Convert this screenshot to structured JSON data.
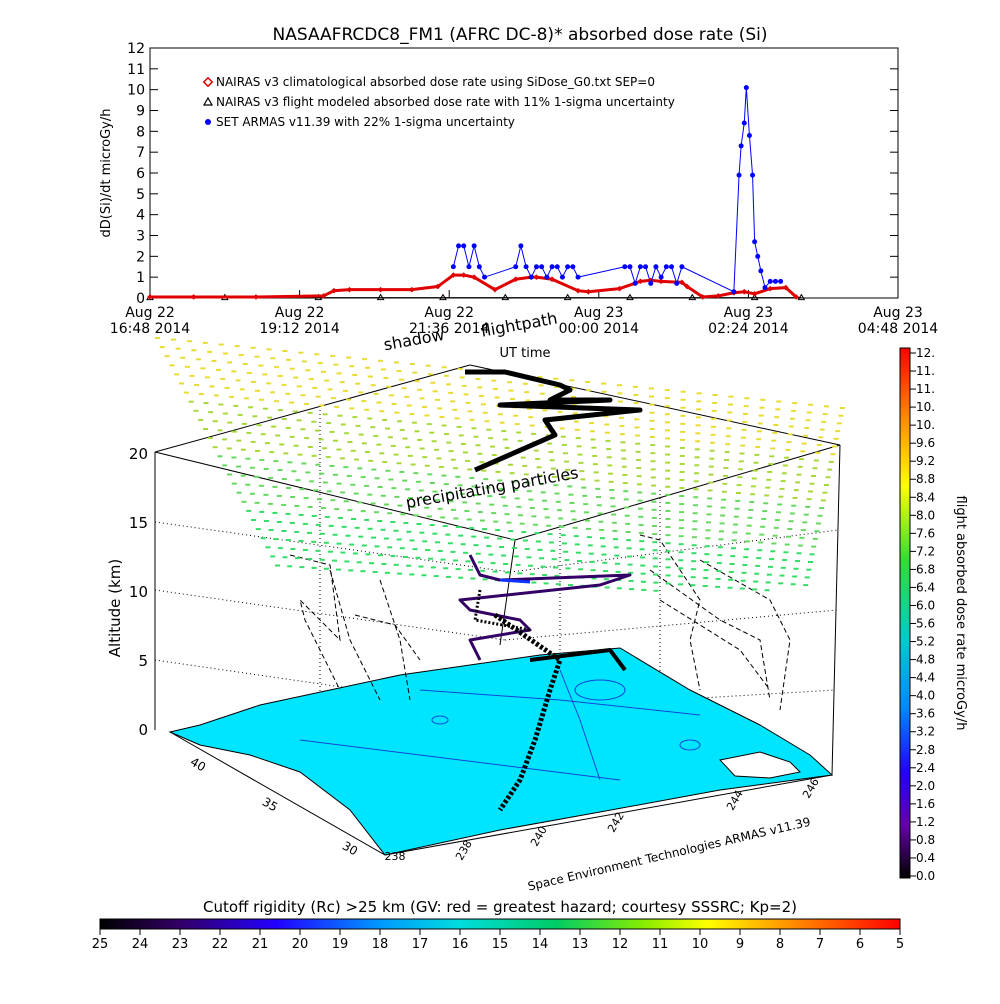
{
  "chart_data": [
    {
      "type": "scatter",
      "title": "NASAAFRCDC8_FM1 (AFRC DC-8)* absorbed dose rate (Si)",
      "xlabel": "UT time",
      "ylabel": "dD(Si)/dt microGy/h",
      "ylim": [
        0,
        12
      ],
      "y_ticks": [
        "0",
        "1",
        "2",
        "3",
        "4",
        "5",
        "6",
        "7",
        "8",
        "9",
        "10",
        "11",
        "12"
      ],
      "x_ticks": [
        {
          "line1": "Aug 22",
          "line2": "16:48 2014"
        },
        {
          "line1": "Aug 22",
          "line2": "19:12 2014"
        },
        {
          "line1": "Aug 22",
          "line2": "21:36 2014"
        },
        {
          "line1": "Aug 23",
          "line2": "00:00 2014"
        },
        {
          "line1": "Aug 23",
          "line2": "02:24 2014"
        },
        {
          "line1": "Aug 23",
          "line2": "04:48 2014"
        }
      ],
      "legend_position": "top-left",
      "series": [
        {
          "name": "NAIRAS v3 climatological absorbed dose rate using SiDose_G0.txt SEP=0",
          "color": "#e00000",
          "marker": "diamond",
          "x": [
            "16:48",
            "17:30",
            "18:30",
            "19:35",
            "19:45",
            "20:00",
            "20:30",
            "21:00",
            "21:25",
            "21:40",
            "21:50",
            "22:00",
            "22:20",
            "22:40",
            "22:55",
            "23:00",
            "23:15",
            "23:40",
            "23:50",
            "00:20",
            "00:40",
            "00:50",
            "01:00",
            "01:20",
            "01:25",
            "01:40",
            "01:55",
            "02:10",
            "02:20",
            "02:30",
            "02:45",
            "03:00",
            "03:10"
          ],
          "values": [
            0.05,
            0.05,
            0.05,
            0.1,
            0.35,
            0.4,
            0.4,
            0.4,
            0.55,
            1.1,
            1.1,
            1.0,
            0.4,
            0.9,
            1.0,
            1.0,
            0.9,
            0.35,
            0.3,
            0.45,
            0.8,
            0.85,
            0.8,
            0.75,
            0.55,
            0.05,
            0.1,
            0.25,
            0.3,
            0.2,
            0.45,
            0.5,
            0.05
          ]
        },
        {
          "name": "NAIRAS v3 flight modeled absorbed dose rate with 11% 1-sigma uncertainty",
          "color": "#000000",
          "marker": "triangle",
          "x": [
            "16:48",
            "18:00",
            "19:30",
            "20:30",
            "21:30",
            "22:30",
            "23:30",
            "00:30",
            "01:30",
            "02:30",
            "03:15"
          ],
          "values": [
            0.02,
            0.02,
            0.02,
            0.02,
            0.02,
            0.02,
            0.02,
            0.02,
            0.02,
            0.02,
            0.02
          ]
        },
        {
          "name": "SET ARMAS v11.39 with 22% 1-sigma uncertainty",
          "color": "#0000ff",
          "marker": "circle",
          "x": [
            "21:40",
            "21:45",
            "21:50",
            "21:55",
            "22:00",
            "22:05",
            "22:10",
            "22:40",
            "22:45",
            "22:50",
            "22:55",
            "23:00",
            "23:05",
            "23:10",
            "23:15",
            "23:20",
            "23:25",
            "23:30",
            "23:35",
            "23:40",
            "00:25",
            "00:30",
            "00:35",
            "00:40",
            "00:45",
            "00:50",
            "00:55",
            "01:00",
            "01:05",
            "01:10",
            "01:15",
            "01:20",
            "02:10",
            "02:15",
            "02:17",
            "02:20",
            "02:22",
            "02:25",
            "02:28",
            "02:30",
            "02:33",
            "02:36",
            "02:40",
            "02:45",
            "02:50",
            "02:55"
          ],
          "values": [
            1.5,
            2.5,
            2.5,
            1.5,
            2.5,
            1.5,
            1.0,
            1.5,
            2.5,
            1.5,
            1.0,
            1.5,
            1.5,
            1.0,
            1.5,
            1.5,
            1.0,
            1.5,
            1.5,
            1.0,
            1.5,
            1.5,
            0.7,
            1.5,
            1.5,
            0.7,
            1.5,
            1.0,
            1.5,
            1.5,
            0.7,
            1.5,
            0.3,
            5.9,
            7.3,
            8.4,
            10.1,
            7.8,
            5.9,
            2.7,
            2.0,
            1.3,
            0.5,
            0.8,
            0.8,
            0.8
          ]
        }
      ]
    },
    {
      "type": "scatter",
      "ylabel": "Altitude (km)",
      "z_ticks": [
        "0",
        "5",
        "10",
        "15",
        "20"
      ],
      "lat_ticks": [
        "30",
        "35",
        "40"
      ],
      "lon_ticks": [
        "238",
        "238",
        "240",
        "242",
        "244",
        "246"
      ],
      "annotations": [
        {
          "text": "shadow"
        },
        {
          "text": "flightpath"
        },
        {
          "text": "precipitating particles"
        }
      ],
      "credit": "Space Environment Technologies ARMAS v11.39",
      "colorbar": {
        "label": "flight absorbed dose rate microGy/h",
        "ticks": [
          "12.",
          "11.",
          "11.",
          "10.",
          "10.",
          "9.6",
          "9.2",
          "8.8",
          "8.4",
          "8.0",
          "7.6",
          "7.2",
          "6.8",
          "6.4",
          "6.0",
          "5.6",
          "5.2",
          "4.8",
          "4.4",
          "4.0",
          "3.6",
          "3.2",
          "2.8",
          "2.4",
          "2.0",
          "1.6",
          "1.2",
          "0.8",
          "0.4",
          "0.0"
        ]
      },
      "rigidity_bar": {
        "label": "Cutoff rigidity (Rc) >25 km (GV: red = greatest hazard; courtesy SSSRC; Kp=2)",
        "ticks": [
          "25",
          "24",
          "23",
          "22",
          "21",
          "20",
          "19",
          "18",
          "17",
          "16",
          "15",
          "14",
          "13",
          "12",
          "11",
          "10",
          "9",
          "8",
          "7",
          "6",
          "5"
        ]
      }
    }
  ]
}
